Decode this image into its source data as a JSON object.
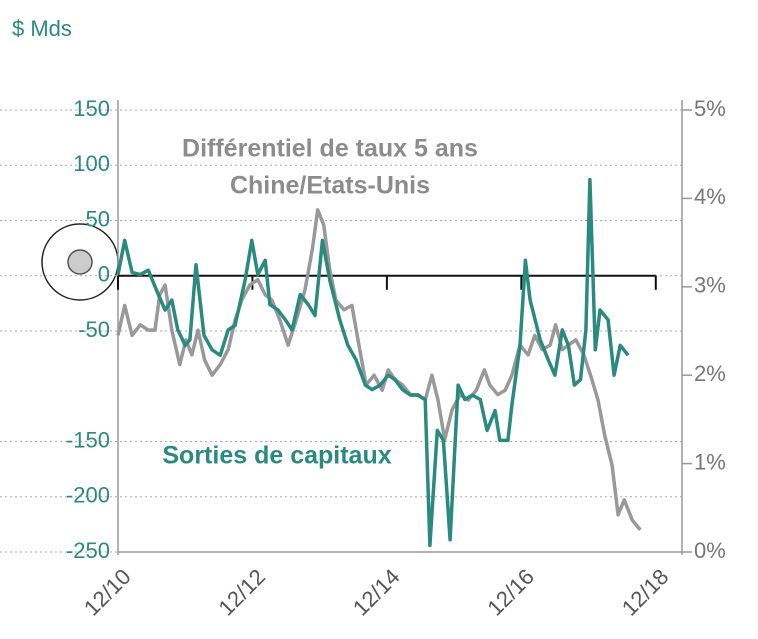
{
  "chart_data": {
    "type": "line",
    "ylabel": "$ Mds",
    "annotations": [
      {
        "text": "Différentiel de taux 5 ans",
        "color": "#8c8c8c"
      },
      {
        "text": "Chine/Etats-Unis",
        "color": "#8c8c8c"
      },
      {
        "text": "Sorties de capitaux",
        "color": "#2a8a80"
      }
    ],
    "xlim": [
      2010.92,
      2019.31
    ],
    "xticks": [
      {
        "value": 2010.92,
        "label": "12/10"
      },
      {
        "value": 2012.92,
        "label": "12/12"
      },
      {
        "value": 2014.92,
        "label": "12/14"
      },
      {
        "value": 2016.92,
        "label": "12/16"
      },
      {
        "value": 2018.92,
        "label": "12/18"
      }
    ],
    "ylim": [
      -250,
      150
    ],
    "yticks": [
      150,
      100,
      50,
      0,
      -50,
      -150,
      -200,
      -250
    ],
    "y2lim": [
      0,
      5
    ],
    "y2ticks": [
      {
        "value": 5,
        "label": "5%"
      },
      {
        "value": 4,
        "label": "4%"
      },
      {
        "value": 3,
        "label": "3%"
      },
      {
        "value": 2,
        "label": "2%"
      },
      {
        "value": 1,
        "label": "1%"
      },
      {
        "value": 0,
        "label": "0%"
      }
    ],
    "grid": true,
    "series": [
      {
        "color": "#2a8a80",
        "x": [
          2010.92,
          2011.02,
          2011.13,
          2011.25,
          2011.37,
          2011.52,
          2011.62,
          2011.72,
          2011.81,
          2011.92,
          2011.99,
          2012.08,
          2012.2,
          2012.32,
          2012.44,
          2012.56,
          2012.66,
          2012.81,
          2012.91,
          2013.0,
          2013.11,
          2013.18,
          2013.3,
          2013.41,
          2013.51,
          2013.63,
          2013.75,
          2013.85,
          2013.96,
          2014.07,
          2014.22,
          2014.34,
          2014.46,
          2014.6,
          2014.7,
          2014.82,
          2014.94,
          2015.04,
          2015.15,
          2015.27,
          2015.38,
          2015.49,
          2015.56,
          2015.67,
          2015.76,
          2015.86,
          2015.98,
          2016.08,
          2016.19,
          2016.31,
          2016.41,
          2016.53,
          2016.6,
          2016.72,
          2016.78,
          2016.9,
          2016.98,
          2017.05,
          2017.2,
          2017.32,
          2017.42,
          2017.53,
          2017.62,
          2017.71,
          2017.8,
          2017.88,
          2017.94,
          2018.02,
          2018.09,
          2018.21,
          2018.3,
          2018.39,
          2018.51
        ],
        "values": [
          1,
          32,
          3,
          1,
          5,
          -17,
          -31,
          -22,
          -49,
          -63,
          -58,
          10,
          -54,
          -67,
          -72,
          -49,
          -45,
          -4,
          32,
          1,
          14,
          -26,
          -31,
          -40,
          -49,
          -17,
          -26,
          -36,
          32,
          -4,
          -40,
          -63,
          -76,
          -99,
          -103,
          -99,
          -90,
          -94,
          -103,
          -108,
          -108,
          -112,
          -244,
          -140,
          -149,
          -239,
          -99,
          -112,
          -108,
          -112,
          -140,
          -122,
          -149,
          -149,
          -117,
          -63,
          14,
          -22,
          -58,
          -76,
          -90,
          -49,
          -63,
          -99,
          -94,
          -49,
          87,
          -67,
          -31,
          -40,
          -90,
          -63,
          -72
        ]
      },
      {
        "color": "#999999",
        "axis": "y2",
        "x": [
          2010.92,
          2011.02,
          2011.13,
          2011.25,
          2011.37,
          2011.47,
          2011.54,
          2011.62,
          2011.72,
          2011.84,
          2011.93,
          2012.02,
          2012.11,
          2012.21,
          2012.32,
          2012.44,
          2012.56,
          2012.66,
          2012.76,
          2012.88,
          2013.0,
          2013.11,
          2013.21,
          2013.33,
          2013.45,
          2013.57,
          2013.7,
          2013.81,
          2013.89,
          2013.98,
          2014.07,
          2014.16,
          2014.28,
          2014.4,
          2014.49,
          2014.61,
          2014.73,
          2014.85,
          2014.94,
          2015.04,
          2015.15,
          2015.27,
          2015.38,
          2015.49,
          2015.59,
          2015.68,
          2015.78,
          2015.89,
          2016.01,
          2016.13,
          2016.25,
          2016.37,
          2016.45,
          2016.57,
          2016.68,
          2016.78,
          2016.9,
          2017.02,
          2017.12,
          2017.23,
          2017.35,
          2017.43,
          2017.53,
          2017.62,
          2017.73,
          2017.85,
          2017.97,
          2018.06,
          2018.16,
          2018.27,
          2018.36,
          2018.45,
          2018.57,
          2018.69
        ],
        "values": [
          2.45,
          2.79,
          2.45,
          2.57,
          2.51,
          2.51,
          2.91,
          3.02,
          2.51,
          2.12,
          2.4,
          2.23,
          2.51,
          2.17,
          2.0,
          2.12,
          2.29,
          2.62,
          2.85,
          3.02,
          3.08,
          2.91,
          2.85,
          2.62,
          2.34,
          2.62,
          2.96,
          3.42,
          3.87,
          3.7,
          3.19,
          2.85,
          2.74,
          2.79,
          2.4,
          1.89,
          2.0,
          1.83,
          2.06,
          1.95,
          1.89,
          1.78,
          1.78,
          1.72,
          2.0,
          1.72,
          1.27,
          1.61,
          1.78,
          1.72,
          1.83,
          2.06,
          1.89,
          1.78,
          1.83,
          2.0,
          2.34,
          2.23,
          2.45,
          2.29,
          2.34,
          2.57,
          2.29,
          2.34,
          2.4,
          2.23,
          1.95,
          1.72,
          1.32,
          0.98,
          0.42,
          0.59,
          0.36,
          0.25
        ]
      }
    ]
  }
}
